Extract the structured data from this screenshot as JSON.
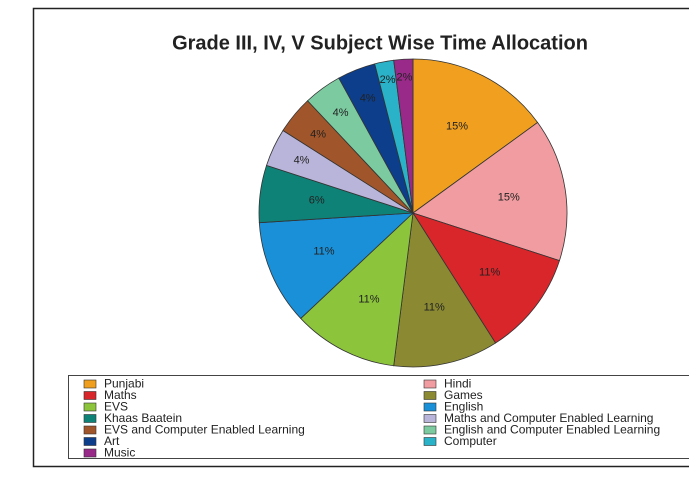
{
  "chart_data": {
    "type": "pie",
    "title": "Grade III, IV, V Subject Wise Time Allocation",
    "categories": [
      "Punjabi",
      "Hindi",
      "Maths",
      "Games",
      "EVS",
      "English",
      "Khaas Baatein",
      "Maths and Computer Enabled Learning",
      "EVS and Computer Enabled Learning",
      "English and Computer Enabled Learning",
      "Art",
      "Computer",
      "Music"
    ],
    "values": [
      15,
      15,
      11,
      11,
      11,
      11,
      6,
      4,
      4,
      4,
      4,
      2,
      2
    ],
    "value_labels": [
      "15%",
      "15%",
      "11%",
      "11%",
      "11%",
      "11%",
      "6%",
      "4%",
      "4%",
      "4%",
      "4%",
      "2%",
      "2%"
    ],
    "colors": [
      "#f0a01e",
      "#f09ca0",
      "#d8262b",
      "#8b8a32",
      "#8cc43c",
      "#1a90d8",
      "#0f8278",
      "#b9b4d9",
      "#a0562a",
      "#7ccba0",
      "#0c3e8c",
      "#2ab2c8",
      "#9a2a8a"
    ]
  }
}
